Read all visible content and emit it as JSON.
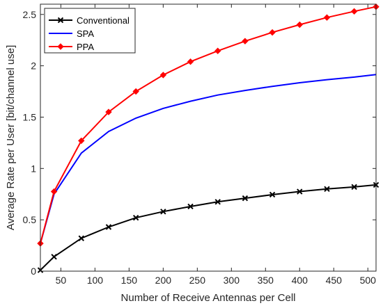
{
  "chart_data": {
    "type": "line",
    "title": "",
    "xlabel": "Number of Receive Antennas per Cell",
    "ylabel": "Average Rate per User [bit/channel use]",
    "xlim": [
      20,
      512
    ],
    "ylim": [
      0,
      2.6
    ],
    "xticks": [
      50,
      100,
      150,
      200,
      250,
      300,
      350,
      400,
      450,
      500
    ],
    "yticks": [
      0,
      0.5,
      1,
      1.5,
      2,
      2.5
    ],
    "xtick_labels": [
      "50",
      "100",
      "150",
      "200",
      "250",
      "300",
      "350",
      "400",
      "450",
      "500"
    ],
    "ytick_labels": [
      "0",
      "0.5",
      "1",
      "1.5",
      "2",
      "2.5"
    ],
    "grid": false,
    "legend_position": "top-left",
    "x": [
      20,
      40,
      80,
      120,
      160,
      200,
      240,
      280,
      320,
      360,
      400,
      440,
      480,
      512
    ],
    "series": [
      {
        "name": "Conventional",
        "color": "#000000",
        "marker": "x",
        "values": [
          0.01,
          0.14,
          0.32,
          0.43,
          0.52,
          0.58,
          0.63,
          0.675,
          0.71,
          0.745,
          0.775,
          0.8,
          0.82,
          0.84
        ]
      },
      {
        "name": "SPA",
        "color": "#0000ff",
        "marker": "none",
        "values": [
          0.27,
          0.75,
          1.15,
          1.36,
          1.49,
          1.585,
          1.655,
          1.715,
          1.76,
          1.8,
          1.835,
          1.865,
          1.89,
          1.915
        ]
      },
      {
        "name": "PPA",
        "color": "#ff0000",
        "marker": "diamond",
        "values": [
          0.27,
          0.775,
          1.27,
          1.55,
          1.75,
          1.91,
          2.04,
          2.145,
          2.24,
          2.325,
          2.4,
          2.47,
          2.53,
          2.575
        ]
      }
    ]
  }
}
